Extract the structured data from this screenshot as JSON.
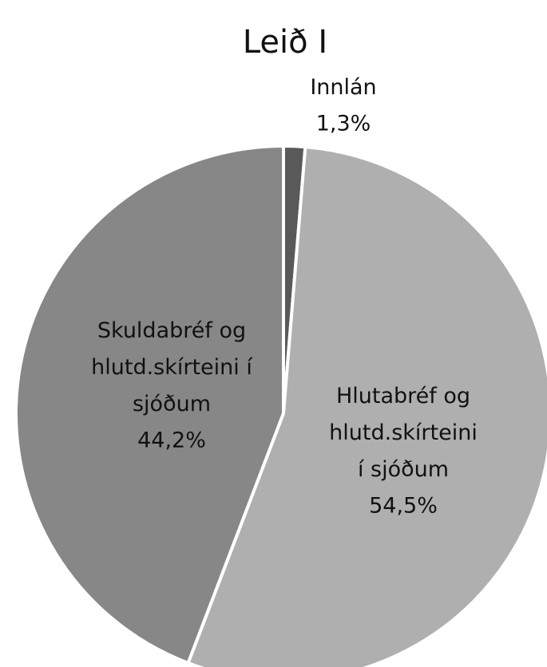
{
  "chart_data": {
    "type": "pie",
    "title": "Leið I",
    "categories": [
      "Innlán",
      "Hlutabréf og hlutd.skírteini í sjóðum",
      "Skuldabréf og hlutd.skírteini í sjóðum"
    ],
    "values": [
      1.3,
      54.5,
      44.2
    ],
    "value_labels": [
      "1,3%",
      "54,5%",
      "44,2%"
    ],
    "colors": [
      "#595959",
      "#afafaf",
      "#878787"
    ]
  }
}
